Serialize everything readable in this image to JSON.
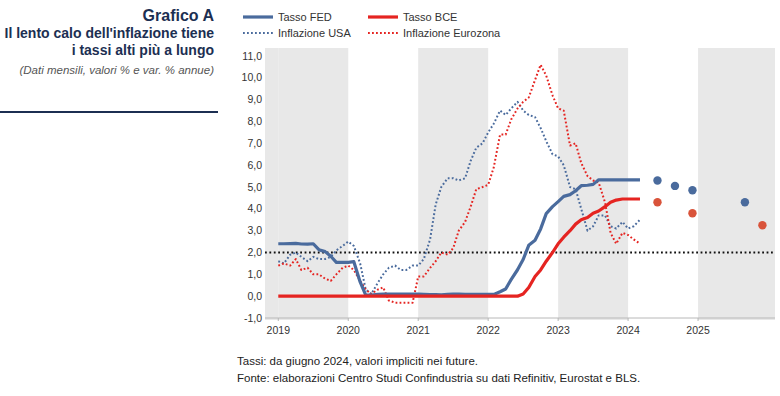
{
  "chart_data": {
    "type": "line",
    "chart_label": "Grafico A",
    "title": "Il lento calo dell'inflazione tiene i tassi alti più a lungo",
    "subtitle": "(Dati mensili, valori % e var. % annue)",
    "notes": [
      "Tassi: da giugno 2024, valori impliciti nei future.",
      "Fonte: elaborazioni Centro Studi Confindustria su dati Refinitiv, Eurostat e BLS."
    ],
    "x": [
      2019,
      2019.08,
      2019.17,
      2019.25,
      2019.33,
      2019.42,
      2019.5,
      2019.58,
      2019.67,
      2019.75,
      2019.83,
      2019.92,
      2020,
      2020.08,
      2020.17,
      2020.25,
      2020.33,
      2020.42,
      2020.5,
      2020.58,
      2020.67,
      2020.75,
      2020.83,
      2020.92,
      2021,
      2021.08,
      2021.17,
      2021.25,
      2021.33,
      2021.42,
      2021.5,
      2021.58,
      2021.67,
      2021.75,
      2021.83,
      2021.92,
      2022,
      2022.08,
      2022.17,
      2022.25,
      2022.33,
      2022.42,
      2022.5,
      2022.58,
      2022.67,
      2022.75,
      2022.83,
      2022.92,
      2023,
      2023.08,
      2023.17,
      2023.25,
      2023.33,
      2023.42,
      2023.5,
      2023.58,
      2023.67,
      2023.75,
      2023.83,
      2023.92,
      2024,
      2024.08,
      2024.17
    ],
    "xlim": [
      2018.81,
      2026.1
    ],
    "xticks": [
      2019,
      2020,
      2021,
      2022,
      2023,
      2024,
      2025
    ],
    "ylim": [
      -1,
      11
    ],
    "yticks": [
      {
        "value": -1,
        "label": "-1,0"
      },
      {
        "value": 0,
        "label": "0,0"
      },
      {
        "value": 1,
        "label": "1,0"
      },
      {
        "value": 2,
        "label": "2,0"
      },
      {
        "value": 3,
        "label": "3,0"
      },
      {
        "value": 4,
        "label": "4,0"
      },
      {
        "value": 5,
        "label": "5,0"
      },
      {
        "value": 6,
        "label": "6,0"
      },
      {
        "value": 7,
        "label": "7,0"
      },
      {
        "value": 8,
        "label": "8,0"
      },
      {
        "value": 9,
        "label": "9,0"
      },
      {
        "value": 10,
        "label": "10,0"
      },
      {
        "value": 11,
        "label": "11,0"
      }
    ],
    "target_line": 2,
    "grid": false,
    "legend": "top",
    "series": [
      {
        "name": "Tasso FED",
        "color": "#4a6b9d",
        "line_style": "solid",
        "values": [
          2.4,
          2.4,
          2.41,
          2.42,
          2.39,
          2.38,
          2.4,
          2.13,
          2.04,
          1.83,
          1.55,
          1.55,
          1.55,
          1.58,
          0.65,
          0.05,
          0.05,
          0.08,
          0.09,
          0.1,
          0.09,
          0.09,
          0.09,
          0.09,
          0.09,
          0.08,
          0.07,
          0.07,
          0.06,
          0.08,
          0.1,
          0.09,
          0.08,
          0.08,
          0.08,
          0.08,
          0.08,
          0.08,
          0.2,
          0.33,
          0.77,
          1.21,
          1.68,
          2.33,
          2.56,
          3.08,
          3.78,
          4.1,
          4.33,
          4.57,
          4.65,
          4.83,
          5.06,
          5.08,
          5.12,
          5.33,
          5.33,
          5.33,
          5.33,
          5.33,
          5.33,
          5.33,
          5.33
        ]
      },
      {
        "name": "Tasso BCE",
        "color": "#e52421",
        "line_style": "solid",
        "values": [
          0,
          0,
          0,
          0,
          0,
          0,
          0,
          0,
          0,
          0,
          0,
          0,
          0,
          0,
          0,
          0,
          0,
          0,
          0,
          0,
          0,
          0,
          0,
          0,
          0,
          0,
          0,
          0,
          0,
          0,
          0,
          0,
          0,
          0,
          0,
          0,
          0,
          0,
          0,
          0,
          0,
          0,
          0.1,
          0.4,
          0.9,
          1.2,
          1.6,
          2.0,
          2.4,
          2.7,
          3.0,
          3.3,
          3.5,
          3.6,
          3.8,
          3.9,
          4.1,
          4.3,
          4.4,
          4.45,
          4.45,
          4.45,
          4.45
        ]
      },
      {
        "name": "Inflazione USA",
        "color": "#4a6b9d",
        "line_style": "dotted",
        "values": [
          1.6,
          1.5,
          1.9,
          2.0,
          1.8,
          1.6,
          1.8,
          1.7,
          1.7,
          1.8,
          2.1,
          2.3,
          2.5,
          2.3,
          1.5,
          0.3,
          0.1,
          0.6,
          1.0,
          1.3,
          1.4,
          1.2,
          1.2,
          1.4,
          1.4,
          1.7,
          2.6,
          4.2,
          5.0,
          5.4,
          5.4,
          5.3,
          5.4,
          6.2,
          6.8,
          7.0,
          7.5,
          7.9,
          8.5,
          8.3,
          8.6,
          8.9,
          8.5,
          8.3,
          8.2,
          7.7,
          7.1,
          6.5,
          6.4,
          6.0,
          5.0,
          4.9,
          4.0,
          3.0,
          3.2,
          3.7,
          3.7,
          3.2,
          3.1,
          3.4,
          3.1,
          3.2,
          3.5
        ]
      },
      {
        "name": "Inflazione Eurozona",
        "color": "#e52421",
        "line_style": "dotted",
        "values": [
          1.4,
          1.5,
          1.4,
          1.7,
          1.2,
          1.3,
          1.0,
          1.0,
          0.8,
          0.7,
          1.0,
          1.3,
          1.4,
          1.2,
          0.7,
          0.3,
          0.1,
          0.3,
          0.4,
          -0.2,
          -0.3,
          -0.3,
          -0.3,
          -0.3,
          0.9,
          0.9,
          1.3,
          1.6,
          2.0,
          1.9,
          2.2,
          3.0,
          3.4,
          4.1,
          4.9,
          5.0,
          5.1,
          5.9,
          7.4,
          7.4,
          8.1,
          8.6,
          8.9,
          9.1,
          9.9,
          10.6,
          10.1,
          9.2,
          8.6,
          8.5,
          6.9,
          7.0,
          6.1,
          5.5,
          5.3,
          5.2,
          4.3,
          2.9,
          2.4,
          2.9,
          2.8,
          2.6,
          2.4
        ]
      },
      {
        "type": "scatter",
        "marker": "circle",
        "color": "#4a6b9d",
        "x": [
          2024.42,
          2024.67,
          2024.92,
          2025.67
        ],
        "values": [
          5.3,
          5.05,
          4.85,
          4.3
        ]
      },
      {
        "type": "scatter",
        "marker": "circle",
        "color": "#d9533a",
        "x": [
          2024.42,
          2024.92,
          2025.92
        ],
        "values": [
          4.3,
          3.8,
          3.25
        ]
      }
    ]
  }
}
